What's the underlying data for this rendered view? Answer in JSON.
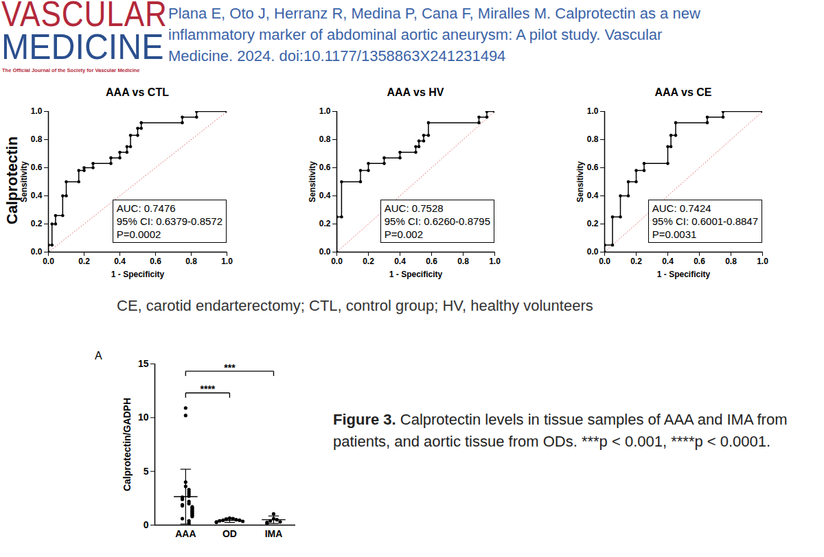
{
  "header": {
    "journal_line1": "VASCULAR",
    "journal_line2": "MEDICINE",
    "journal_tagline": "The Official Journal of the Society for Vascular Medicine",
    "citation": [
      "Plana E, Oto J, Herranz R, Medina P, Cana F, Miralles M. Calprotectin as a new",
      "inflammatory marker of abdominal aortic aneurysm: A pilot study. Vascular",
      "Medicine. 2024. doi:10.1177/1358863X241231494"
    ]
  },
  "row_label": "Calprotectin",
  "abbreviations": "CE, carotid endarterectomy; CTL, control group; HV, healthy volunteers",
  "chart_data": [
    {
      "type": "line",
      "title": "AAA vs CTL",
      "xlabel": "1 - Specificity",
      "ylabel": "Sensitivity",
      "marker": "circle",
      "color": "#000000",
      "x": [
        0,
        0,
        0.02,
        0.02,
        0.04,
        0.04,
        0.08,
        0.08,
        0.1,
        0.1,
        0.17,
        0.17,
        0.2,
        0.2,
        0.25,
        0.25,
        0.35,
        0.35,
        0.4,
        0.4,
        0.44,
        0.44,
        0.46,
        0.46,
        0.5,
        0.5,
        0.52,
        0.52,
        0.75,
        0.75,
        0.83,
        0.83,
        1
      ],
      "values": [
        0,
        0.05,
        0.05,
        0.2,
        0.2,
        0.26,
        0.26,
        0.4,
        0.4,
        0.5,
        0.5,
        0.58,
        0.58,
        0.6,
        0.6,
        0.63,
        0.63,
        0.67,
        0.67,
        0.71,
        0.71,
        0.75,
        0.75,
        0.83,
        0.83,
        0.88,
        0.88,
        0.92,
        0.92,
        0.96,
        0.96,
        1,
        1
      ],
      "annotations": [
        "AUC: 0.7476",
        "95% CI: 0.6379-0.8572",
        "P=0.0002"
      ],
      "xlim": [
        0,
        1
      ],
      "ylim": [
        0,
        1
      ],
      "xticks": [
        {
          "value": 0,
          "label": "0.0"
        },
        {
          "value": 0.2,
          "label": "0.2"
        },
        {
          "value": 0.4,
          "label": "0.4"
        },
        {
          "value": 0.6,
          "label": "0.6"
        },
        {
          "value": 0.8,
          "label": "0.8"
        },
        {
          "value": 1,
          "label": "1.0"
        }
      ],
      "yticks": [
        {
          "value": 0,
          "label": "0.0"
        },
        {
          "value": 0.2,
          "label": "0.2"
        },
        {
          "value": 0.4,
          "label": "0.4"
        },
        {
          "value": 0.6,
          "label": "0.6"
        },
        {
          "value": 0.8,
          "label": "0.8"
        },
        {
          "value": 1,
          "label": "1.0"
        }
      ],
      "grid": false
    },
    {
      "type": "line",
      "title": "AAA vs HV",
      "xlabel": "1 - Specificity",
      "ylabel": "Sensitivity",
      "marker": "circle",
      "color": "#000000",
      "x": [
        0,
        0,
        0.03,
        0.03,
        0.15,
        0.15,
        0.2,
        0.2,
        0.3,
        0.3,
        0.4,
        0.4,
        0.5,
        0.5,
        0.52,
        0.52,
        0.55,
        0.55,
        0.58,
        0.58,
        0.9,
        0.9,
        0.95,
        0.95,
        1
      ],
      "values": [
        0,
        0.25,
        0.25,
        0.5,
        0.5,
        0.58,
        0.58,
        0.63,
        0.63,
        0.67,
        0.67,
        0.71,
        0.71,
        0.75,
        0.75,
        0.79,
        0.79,
        0.83,
        0.83,
        0.92,
        0.92,
        0.96,
        0.96,
        1,
        1
      ],
      "annotations": [
        "AUC: 0.7528",
        "95% CI: 0.6260-0.8795",
        "P=0.002"
      ],
      "xlim": [
        0,
        1
      ],
      "ylim": [
        0,
        1
      ],
      "xticks": [
        {
          "value": 0,
          "label": "0.0"
        },
        {
          "value": 0.2,
          "label": "0.2"
        },
        {
          "value": 0.4,
          "label": "0.4"
        },
        {
          "value": 0.6,
          "label": "0.6"
        },
        {
          "value": 0.8,
          "label": "0.8"
        },
        {
          "value": 1,
          "label": "1.0"
        }
      ],
      "yticks": [
        {
          "value": 0,
          "label": "0.0"
        },
        {
          "value": 0.2,
          "label": "0.2"
        },
        {
          "value": 0.4,
          "label": "0.4"
        },
        {
          "value": 0.6,
          "label": "0.6"
        },
        {
          "value": 0.8,
          "label": "0.8"
        },
        {
          "value": 1,
          "label": "1.0"
        }
      ],
      "grid": false
    },
    {
      "type": "line",
      "title": "AAA vs CE",
      "xlabel": "1 - Specificity",
      "ylabel": "Sensitivity",
      "marker": "circle",
      "color": "#000000",
      "x": [
        0,
        0,
        0.05,
        0.05,
        0.1,
        0.1,
        0.15,
        0.15,
        0.2,
        0.2,
        0.25,
        0.25,
        0.4,
        0.4,
        0.42,
        0.42,
        0.45,
        0.45,
        0.65,
        0.65,
        0.75,
        0.75,
        1
      ],
      "values": [
        0,
        0.05,
        0.05,
        0.25,
        0.25,
        0.4,
        0.4,
        0.5,
        0.5,
        0.58,
        0.58,
        0.63,
        0.63,
        0.75,
        0.75,
        0.83,
        0.83,
        0.92,
        0.92,
        0.96,
        0.96,
        1,
        1
      ],
      "annotations": [
        "AUC: 0.7424",
        "95% CI: 0.6001-0.8847",
        "P=0.0031"
      ],
      "xlim": [
        0,
        1
      ],
      "ylim": [
        0,
        1
      ],
      "xticks": [
        {
          "value": 0,
          "label": "0.0"
        },
        {
          "value": 0.2,
          "label": "0.2"
        },
        {
          "value": 0.4,
          "label": "0.4"
        },
        {
          "value": 0.6,
          "label": "0.6"
        },
        {
          "value": 0.8,
          "label": "0.8"
        },
        {
          "value": 1,
          "label": "1.0"
        }
      ],
      "yticks": [
        {
          "value": 0,
          "label": "0.0"
        },
        {
          "value": 0.2,
          "label": "0.2"
        },
        {
          "value": 0.4,
          "label": "0.4"
        },
        {
          "value": 0.6,
          "label": "0.6"
        },
        {
          "value": 0.8,
          "label": "0.8"
        },
        {
          "value": 1,
          "label": "1.0"
        }
      ],
      "grid": false
    },
    {
      "type": "scatter",
      "panel_label": "A",
      "ylabel": "Calprotectin/GADPH",
      "marker": "circle",
      "color": "#000000",
      "categories": [
        "AAA",
        "OD",
        "IMA"
      ],
      "values": [
        [
          10.9,
          10.2,
          4.0,
          3.6,
          3.3,
          3.1,
          2.9,
          2.7,
          2.6,
          2.4,
          2.2,
          2.0,
          1.9,
          1.8,
          1.7,
          1.6,
          1.5,
          1.4,
          1.3,
          1.2,
          1.1,
          1.0,
          0.9,
          0.8,
          0.6,
          0.4,
          0.2
        ],
        [
          0.65,
          0.6,
          0.55,
          0.5,
          0.45,
          0.45,
          0.4,
          0.35,
          0.3,
          0.25
        ],
        [
          1.05,
          0.6,
          0.5,
          0.4,
          0.3,
          0.25,
          0.15
        ]
      ],
      "mean": [
        2.65,
        0.45,
        0.5
      ],
      "sd": [
        2.55,
        0.2,
        0.35
      ],
      "comparisons": [
        {
          "from": "AAA",
          "to": "IMA",
          "label": "***"
        },
        {
          "from": "AAA",
          "to": "OD",
          "label": "****"
        }
      ],
      "ylim": [
        0,
        15
      ],
      "yticks": [
        0,
        5,
        10,
        15
      ],
      "grid": false
    }
  ],
  "figure_caption": {
    "label": "Figure 3.",
    "text": "Calprotectin levels in tissue samples of AAA and IMA from patients, and aortic tissue from ODs. ***p < 0.001, ****p < 0.0001."
  }
}
